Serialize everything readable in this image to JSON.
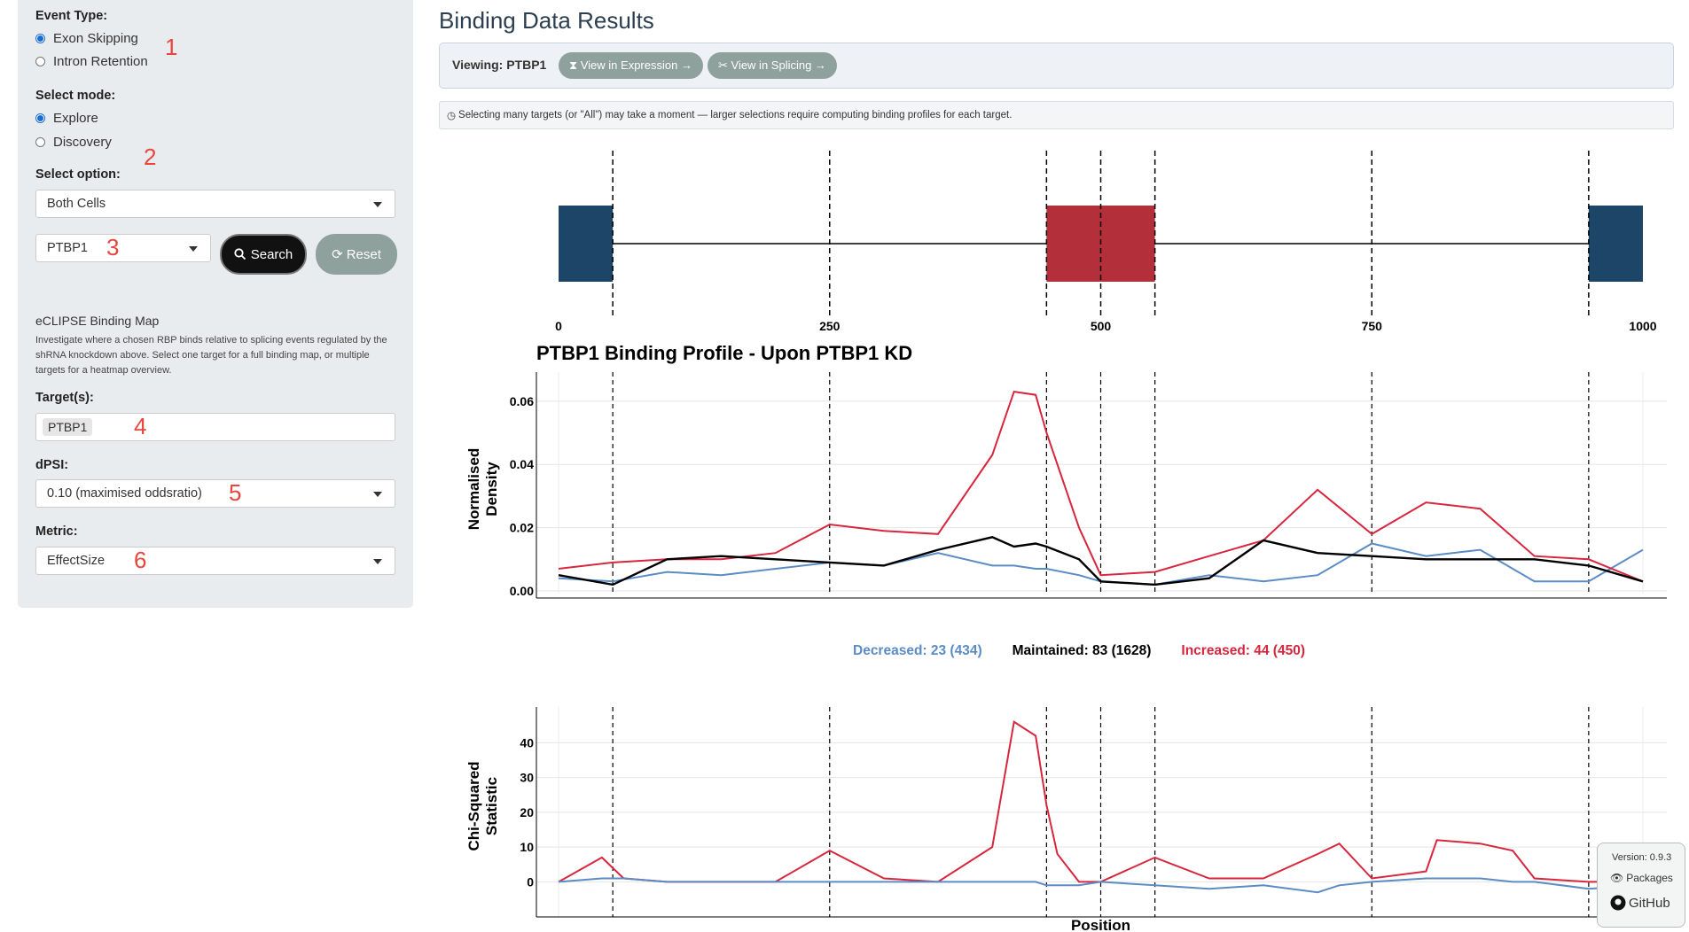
{
  "sidebar": {
    "event_type_label": "Event Type:",
    "event_options": [
      "Exon Skipping",
      "Intron Retention"
    ],
    "event_selected": "Exon Skipping",
    "mode_label": "Select mode:",
    "mode_options": [
      "Explore",
      "Discovery"
    ],
    "mode_selected": "Explore",
    "option_label": "Select option:",
    "option_value": "Both Cells",
    "gene_value": "PTBP1",
    "search_label": "Search",
    "reset_label": "Reset",
    "eclipse_title": "eCLIPSE Binding Map",
    "eclipse_desc": "Investigate where a chosen RBP binds relative to splicing events regulated by the shRNA knockdown above. Select one target for a full binding map, or multiple targets for a heatmap overview.",
    "targets_label": "Target(s):",
    "target_tag": "PTBP1",
    "dpsi_label": "dPSI:",
    "dpsi_value": "0.10 (maximised oddsratio)",
    "metric_label": "Metric:",
    "metric_value": "EffectSize",
    "markers": [
      "1",
      "2",
      "3",
      "4",
      "5",
      "6"
    ]
  },
  "main": {
    "title": "Binding Data Results",
    "viewing_label": "Viewing: PTBP1",
    "expression_btn": "⧗ View in Expression →",
    "splicing_btn": "✂ View in Splicing →",
    "note": "Selecting many targets (or \"All\") may take a moment — larger selections require computing binding profiles for each target."
  },
  "colors": {
    "decreased": "#5b8cc4",
    "maintained": "#000000",
    "increased": "#d7263d",
    "exon_flank": "#1d4568",
    "exon_middle": "#b3303b"
  },
  "legend": {
    "decreased": "Decreased: 23 (434)",
    "maintained": "Maintained: 83 (1628)",
    "increased": "Increased: 44 (450)"
  },
  "version": {
    "version": "Version: 0.9.3",
    "packages": "Packages",
    "github": "GitHub"
  },
  "chart_data": [
    {
      "type": "diagram",
      "exons": [
        {
          "start": 0,
          "end": 50,
          "role": "upstream"
        },
        {
          "start": 450,
          "end": 550,
          "role": "skipped"
        },
        {
          "start": 950,
          "end": 1000,
          "role": "downstream"
        }
      ],
      "x_ticks": [
        0,
        250,
        500,
        750,
        1000
      ],
      "dashed_positions": [
        50,
        250,
        450,
        500,
        550,
        750,
        950
      ]
    },
    {
      "type": "line",
      "title": "PTBP1 Binding Profile - Upon PTBP1 KD",
      "ylabel": "Normalised Density",
      "xlim": [
        0,
        1000
      ],
      "ylim": [
        0,
        0.065
      ],
      "yticks": [
        "0.00",
        "0.02",
        "0.04",
        "0.06"
      ],
      "x": [
        0,
        50,
        100,
        150,
        200,
        250,
        300,
        350,
        400,
        420,
        440,
        450,
        480,
        500,
        550,
        600,
        650,
        700,
        750,
        800,
        850,
        900,
        950,
        1000
      ],
      "series": [
        {
          "name": "Increased",
          "values": [
            0.007,
            0.009,
            0.01,
            0.01,
            0.012,
            0.021,
            0.019,
            0.018,
            0.043,
            0.063,
            0.062,
            0.05,
            0.02,
            0.005,
            0.006,
            0.011,
            0.016,
            0.032,
            0.018,
            0.028,
            0.026,
            0.011,
            0.01,
            0.003
          ]
        },
        {
          "name": "Maintained",
          "values": [
            0.005,
            0.002,
            0.01,
            0.011,
            0.01,
            0.009,
            0.008,
            0.013,
            0.017,
            0.014,
            0.015,
            0.014,
            0.01,
            0.003,
            0.002,
            0.004,
            0.016,
            0.012,
            0.011,
            0.01,
            0.01,
            0.01,
            0.008,
            0.003
          ]
        },
        {
          "name": "Decreased",
          "values": [
            0.004,
            0.003,
            0.006,
            0.005,
            0.007,
            0.009,
            0.008,
            0.012,
            0.008,
            0.008,
            0.007,
            0.007,
            0.005,
            0.003,
            0.002,
            0.005,
            0.003,
            0.005,
            0.015,
            0.011,
            0.013,
            0.003,
            0.003,
            0.013
          ]
        }
      ]
    },
    {
      "type": "line",
      "xlabel": "Position",
      "ylabel": "Chi-Squared Statistic",
      "xlim": [
        0,
        1000
      ],
      "ylim": [
        -5,
        48
      ],
      "yticks": [
        0,
        10,
        20,
        30,
        40
      ],
      "x": [
        0,
        40,
        60,
        100,
        200,
        250,
        300,
        350,
        400,
        420,
        440,
        450,
        460,
        480,
        500,
        550,
        600,
        650,
        700,
        720,
        750,
        800,
        810,
        850,
        880,
        900,
        950,
        1000
      ],
      "series": [
        {
          "name": "Increased",
          "values": [
            0,
            7,
            1,
            0,
            0,
            9,
            1,
            0,
            10,
            46,
            42,
            22,
            8,
            0,
            0,
            7,
            1,
            1,
            8,
            11,
            1,
            3,
            12,
            11,
            9,
            1,
            0,
            0
          ]
        },
        {
          "name": "Decreased",
          "values": [
            0,
            1,
            1,
            0,
            0,
            0,
            0,
            0,
            0,
            0,
            0,
            -1,
            -1,
            -1,
            0,
            -1,
            -2,
            -1,
            -3,
            -1,
            0,
            1,
            1,
            1,
            0,
            0,
            -2,
            -1
          ]
        }
      ]
    }
  ]
}
